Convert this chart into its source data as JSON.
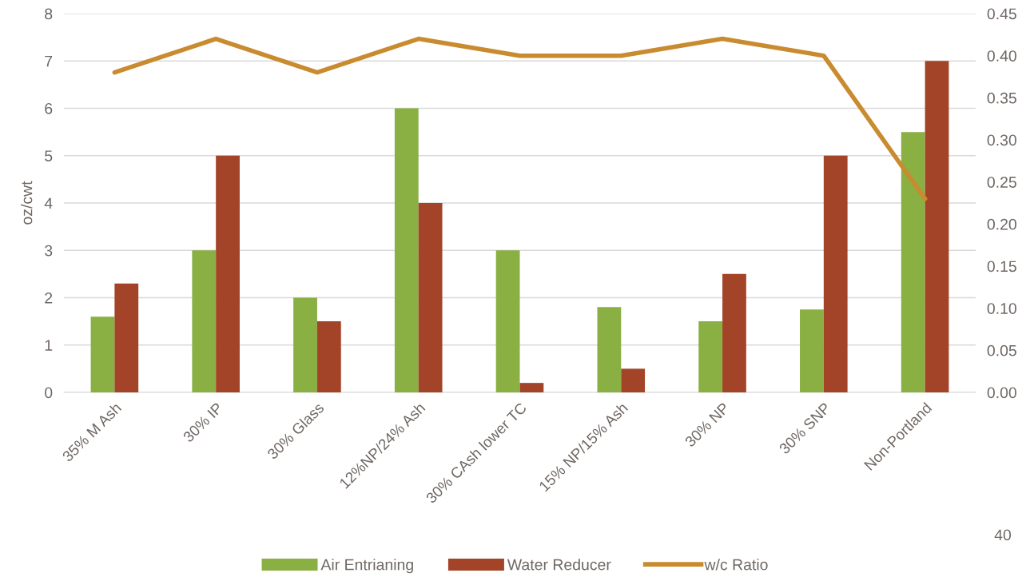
{
  "chart_data": {
    "type": "bar",
    "categories": [
      "35% M Ash",
      "30% IP",
      "30% Glass",
      "12%NP/24% Ash",
      "30% CAsh lower TC",
      "15% NP/15% Ash",
      "30% NP",
      "30% SNP",
      "Non-Portland"
    ],
    "series": [
      {
        "name": "Air Entrianing",
        "color": "#8aaf43",
        "values": [
          1.6,
          3,
          2,
          6,
          3,
          1.8,
          1.5,
          1.75,
          5.5
        ]
      },
      {
        "name": "Water Reducer",
        "color": "#a34428",
        "values": [
          2.3,
          5,
          1.5,
          4,
          0.2,
          0.5,
          2.5,
          5,
          7
        ]
      },
      {
        "name": "w/c Ratio",
        "type": "line",
        "axis": "y2",
        "color": "#c98b2f",
        "values": [
          0.38,
          0.42,
          0.38,
          0.42,
          0.4,
          0.4,
          0.42,
          0.4,
          0.23
        ]
      }
    ],
    "ylabel": "oz/cwt",
    "ylim": [
      0,
      8
    ],
    "yticks": [
      0,
      1,
      2,
      3,
      4,
      5,
      6,
      7,
      8
    ],
    "y2lim": [
      0,
      0.45
    ],
    "y2ticks": [
      {
        "value": 0,
        "label": "0.00"
      },
      {
        "value": 0.05,
        "label": "0.05"
      },
      {
        "value": 0.1,
        "label": "0.10"
      },
      {
        "value": 0.15,
        "label": "0.15"
      },
      {
        "value": 0.2,
        "label": "0.20"
      },
      {
        "value": 0.25,
        "label": "0.25"
      },
      {
        "value": 0.3,
        "label": "0.30"
      },
      {
        "value": 0.35,
        "label": "0.35"
      },
      {
        "value": 0.4,
        "label": "0.40"
      },
      {
        "value": 0.45,
        "label": "0.45"
      }
    ],
    "grid": "y",
    "legend": "bottom",
    "annotations": [
      "40"
    ]
  }
}
